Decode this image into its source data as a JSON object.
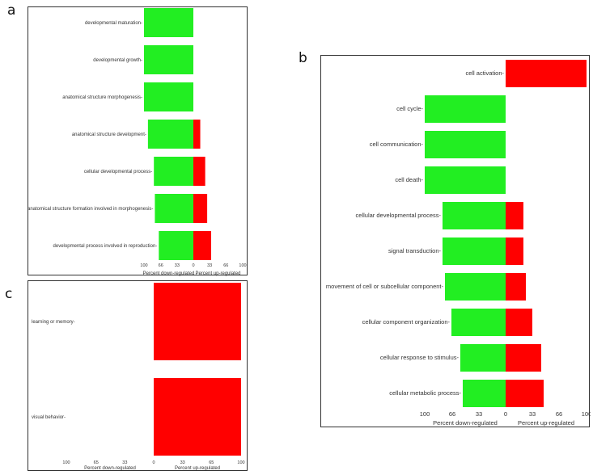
{
  "figure": {
    "panel_labels": [
      "a",
      "b",
      "c"
    ]
  },
  "colors": {
    "down": "#22ee22",
    "up": "#ff0000"
  },
  "chart_data": [
    {
      "panel": "a",
      "type": "bar",
      "orientation": "horizontal-diverging",
      "categories": [
        "developmental maturation",
        "developmental growth",
        "anatomical structure morphogenesis",
        "anatomical structure development",
        "cellular developmental process",
        "anatomical structure formation involved in morphogenesis",
        "developmental process involved in reproduction"
      ],
      "series": [
        {
          "name": "Percent down-regulated",
          "values": [
            100,
            100,
            100,
            92,
            80,
            78,
            70
          ]
        },
        {
          "name": "Percent up-regulated",
          "values": [
            0,
            0,
            0,
            14,
            24,
            28,
            36
          ]
        }
      ],
      "xticks_left": [
        "100",
        "66",
        "33",
        "0"
      ],
      "xticks_right": [
        "33",
        "66",
        "100"
      ],
      "xlabel_left": "Percent down-regulated",
      "xlabel_right": "Percent up-regulated",
      "xlim": [
        -100,
        100
      ]
    },
    {
      "panel": "b",
      "type": "bar",
      "orientation": "horizontal-diverging",
      "categories": [
        "cell activation",
        "cell cycle",
        "cell communication",
        "cell death",
        "cellular developmental process",
        "signal transduction",
        "movement of cell or subcellular component",
        "cellular component organization",
        "cellular response to stimulus",
        "cellular metabolic process"
      ],
      "series": [
        {
          "name": "Percent down-regulated",
          "values": [
            0,
            100,
            100,
            100,
            78,
            78,
            75,
            67,
            56,
            53
          ]
        },
        {
          "name": "Percent up-regulated",
          "values": [
            100,
            0,
            0,
            0,
            22,
            22,
            25,
            33,
            44,
            47
          ]
        }
      ],
      "xticks_left": [
        "100",
        "66",
        "33",
        "0"
      ],
      "xticks_right": [
        "33",
        "66",
        "100"
      ],
      "xlabel_left": "Percent down-regulated",
      "xlabel_right": "Percent up-regulated",
      "xlim": [
        -100,
        100
      ]
    },
    {
      "panel": "c",
      "type": "bar",
      "orientation": "horizontal-diverging",
      "categories": [
        "learning or memory",
        "visual behavior"
      ],
      "series": [
        {
          "name": "Percent down-regulated",
          "values": [
            0,
            0
          ]
        },
        {
          "name": "Percent up-regulated",
          "values": [
            100,
            100
          ]
        }
      ],
      "xticks_left": [
        "100",
        "65",
        "33",
        "0"
      ],
      "xticks_right": [
        "33",
        "65",
        "100"
      ],
      "xlabel_left": "Percent down-regulated",
      "xlabel_right": "Percent up-regulated",
      "xlim": [
        -100,
        100
      ]
    }
  ]
}
